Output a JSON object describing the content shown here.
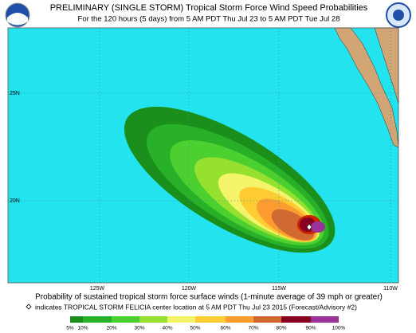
{
  "header": {
    "title": "PRELIMINARY (SINGLE STORM) Tropical Storm Force Wind Speed Probabilities",
    "subtitle": "For the 120 hours (5 days) from 5 AM PDT Thu Jul 23 to 5 AM PDT Tue Jul 28"
  },
  "map": {
    "lat_labels": [
      "25N",
      "20N"
    ],
    "lon_labels": [
      "125W",
      "120W",
      "115W",
      "110W"
    ]
  },
  "footer": {
    "caption": "Probability of sustained tropical storm force surface winds (1-minute average of 39 mph or greater)",
    "note": "indicates TROPICAL STORM FELICIA center location at 5 AM PDT Thu Jul 23 2015 (Forecast/Advisory #2)"
  },
  "legend": {
    "labels": [
      "5%",
      "10%",
      "20%",
      "30%",
      "40%",
      "50%",
      "60%",
      "70%",
      "80%",
      "90%",
      "100%"
    ]
  }
}
